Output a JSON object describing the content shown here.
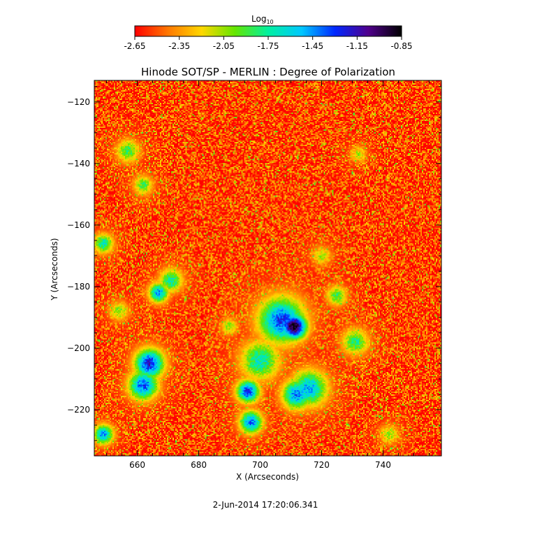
{
  "chart_data": {
    "type": "heatmap",
    "title": "Hinode SOT/SP - MERLIN : Degree of Polarization",
    "xlabel": "X (Arcseconds)",
    "ylabel": "Y (Arcseconds)",
    "xlim": [
      646,
      759
    ],
    "ylim": [
      -235,
      -113
    ],
    "x_ticks": [
      660,
      680,
      700,
      720,
      740
    ],
    "y_ticks": [
      -220,
      -200,
      -180,
      -160,
      -140,
      -120
    ],
    "colorbar": {
      "title": "Log",
      "title_subscript": "10",
      "min": -2.65,
      "max": -0.85,
      "ticks": [
        -2.65,
        -2.35,
        -2.05,
        -1.75,
        -1.45,
        -1.15,
        -0.85
      ],
      "tick_labels": [
        "-2.65",
        "-2.35",
        "-2.05",
        "-1.75",
        "-1.45",
        "-1.15",
        "-0.85"
      ],
      "colormap": [
        "#ff0000",
        "#ff7800",
        "#ffd700",
        "#64e600",
        "#00f0a0",
        "#00c8ff",
        "#0028ff",
        "#50008c",
        "#000000"
      ]
    },
    "background_value": -2.6,
    "features": [
      {
        "x": 711,
        "y": -193,
        "peak": -0.85,
        "spread": 4.0
      },
      {
        "x": 707,
        "y": -191,
        "peak": -1.3,
        "spread": 7.0
      },
      {
        "x": 664,
        "y": -205,
        "peak": -1.2,
        "spread": 4.5
      },
      {
        "x": 662,
        "y": -212,
        "peak": -1.35,
        "spread": 4.5
      },
      {
        "x": 696,
        "y": -214,
        "peak": -1.25,
        "spread": 3.5
      },
      {
        "x": 697,
        "y": -224,
        "peak": -1.4,
        "spread": 3.5
      },
      {
        "x": 712,
        "y": -215,
        "peak": -1.4,
        "spread": 4.5
      },
      {
        "x": 716,
        "y": -213,
        "peak": -1.5,
        "spread": 5.5
      },
      {
        "x": 700,
        "y": -204,
        "peak": -1.7,
        "spread": 6.0
      },
      {
        "x": 667,
        "y": -182,
        "peak": -1.45,
        "spread": 3.0
      },
      {
        "x": 671,
        "y": -178,
        "peak": -1.7,
        "spread": 3.5
      },
      {
        "x": 649,
        "y": -228,
        "peak": -1.45,
        "spread": 3.0
      },
      {
        "x": 649,
        "y": -166,
        "peak": -1.7,
        "spread": 3.0
      },
      {
        "x": 657,
        "y": -136,
        "peak": -1.85,
        "spread": 3.5
      },
      {
        "x": 662,
        "y": -147,
        "peak": -1.9,
        "spread": 3.0
      },
      {
        "x": 731,
        "y": -198,
        "peak": -1.8,
        "spread": 4.0
      },
      {
        "x": 725,
        "y": -183,
        "peak": -1.85,
        "spread": 3.0
      },
      {
        "x": 690,
        "y": -193,
        "peak": -2.0,
        "spread": 2.5
      },
      {
        "x": 654,
        "y": -188,
        "peak": -2.0,
        "spread": 3.0
      },
      {
        "x": 742,
        "y": -228,
        "peak": -2.05,
        "spread": 3.0
      },
      {
        "x": 720,
        "y": -170,
        "peak": -2.1,
        "spread": 3.0
      },
      {
        "x": 732,
        "y": -137,
        "peak": -2.1,
        "spread": 2.5
      }
    ],
    "timestamp": "2-Jun-2014 17:20:06.341"
  }
}
